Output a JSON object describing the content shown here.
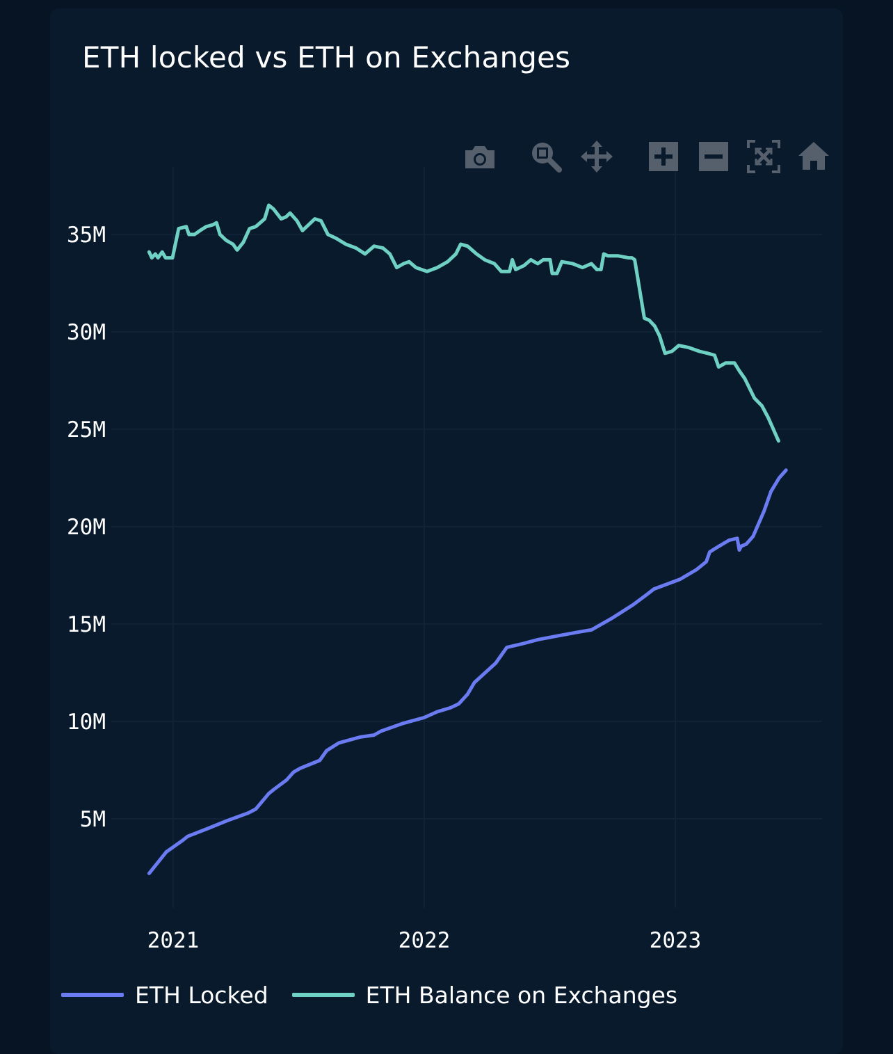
{
  "title": "ETH locked vs ETH on Exchanges",
  "toolbar": {
    "items": [
      {
        "name": "camera-icon",
        "title": "Download plot as a png"
      },
      {
        "name": "zoom-icon",
        "title": "Zoom"
      },
      {
        "name": "pan-icon",
        "title": "Pan"
      },
      {
        "name": "zoom-in-icon",
        "title": "Zoom in"
      },
      {
        "name": "zoom-out-icon",
        "title": "Zoom out"
      },
      {
        "name": "autoscale-icon",
        "title": "Autoscale"
      },
      {
        "name": "reset-axes-icon",
        "title": "Reset axes"
      }
    ],
    "icon_color": "#56606c"
  },
  "colors": {
    "background": "#061424",
    "panel": "#091a2d",
    "grid": "#13243a",
    "locked": "#6b7cf2",
    "exchanges": "#6fd0c4"
  },
  "chart_data": {
    "type": "line",
    "title": "ETH locked vs ETH on Exchanges",
    "xlabel": "",
    "ylabel": "",
    "x_ticks": [
      "2021",
      "2022",
      "2023"
    ],
    "y_ticks": [
      "5M",
      "10M",
      "15M",
      "20M",
      "25M",
      "30M",
      "35M"
    ],
    "y_tick_values": [
      5000000,
      10000000,
      15000000,
      20000000,
      25000000,
      30000000,
      35000000
    ],
    "xlim": [
      "2020-10-29",
      "2023-08-01"
    ],
    "ylim": [
      500000,
      37500000
    ],
    "grid": true,
    "legend_position": "bottom-left",
    "series": [
      {
        "name": "ETH Locked",
        "color": "#6b7cf2",
        "points": [
          [
            "2020-11-27",
            2200000
          ],
          [
            "2020-12-22",
            3300000
          ],
          [
            "2021-01-15",
            3900000
          ],
          [
            "2021-01-22",
            4100000
          ],
          [
            "2021-02-20",
            4500000
          ],
          [
            "2021-03-20",
            4900000
          ],
          [
            "2021-04-20",
            5300000
          ],
          [
            "2021-05-01",
            5500000
          ],
          [
            "2021-05-20",
            6300000
          ],
          [
            "2021-05-27",
            6500000
          ],
          [
            "2021-06-15",
            7000000
          ],
          [
            "2021-06-25",
            7400000
          ],
          [
            "2021-07-05",
            7600000
          ],
          [
            "2021-08-02",
            8000000
          ],
          [
            "2021-08-12",
            8500000
          ],
          [
            "2021-08-30",
            8900000
          ],
          [
            "2021-09-30",
            9200000
          ],
          [
            "2021-10-20",
            9300000
          ],
          [
            "2021-10-30",
            9500000
          ],
          [
            "2021-12-01",
            9900000
          ],
          [
            "2022-01-01",
            10200000
          ],
          [
            "2022-01-20",
            10500000
          ],
          [
            "2022-02-08",
            10700000
          ],
          [
            "2022-02-20",
            10900000
          ],
          [
            "2022-03-05",
            11400000
          ],
          [
            "2022-03-15",
            12000000
          ],
          [
            "2022-04-15",
            13000000
          ],
          [
            "2022-05-01",
            13800000
          ],
          [
            "2022-05-25",
            14000000
          ],
          [
            "2022-06-15",
            14200000
          ],
          [
            "2022-07-15",
            14400000
          ],
          [
            "2022-08-15",
            14600000
          ],
          [
            "2022-09-01",
            14700000
          ],
          [
            "2022-10-01",
            15300000
          ],
          [
            "2022-11-01",
            16000000
          ],
          [
            "2022-11-20",
            16500000
          ],
          [
            "2022-12-01",
            16800000
          ],
          [
            "2023-01-08",
            17300000
          ],
          [
            "2023-02-01",
            17800000
          ],
          [
            "2023-02-15",
            18200000
          ],
          [
            "2023-02-20",
            18700000
          ],
          [
            "2023-03-01",
            18900000
          ],
          [
            "2023-03-20",
            19300000
          ],
          [
            "2023-04-01",
            19400000
          ],
          [
            "2023-04-04",
            18800000
          ],
          [
            "2023-04-07",
            19000000
          ],
          [
            "2023-04-14",
            19100000
          ],
          [
            "2023-04-24",
            19500000
          ],
          [
            "2023-05-10",
            20800000
          ],
          [
            "2023-05-20",
            21800000
          ],
          [
            "2023-06-01",
            22500000
          ],
          [
            "2023-06-11",
            22900000
          ]
        ]
      },
      {
        "name": "ETH Balance on Exchanges",
        "color": "#6fd0c4",
        "points": [
          [
            "2020-11-27",
            34100000
          ],
          [
            "2020-12-01",
            33800000
          ],
          [
            "2020-12-06",
            34000000
          ],
          [
            "2020-12-10",
            33800000
          ],
          [
            "2020-12-16",
            34100000
          ],
          [
            "2020-12-21",
            33800000
          ],
          [
            "2020-12-31",
            33800000
          ],
          [
            "2021-01-09",
            35300000
          ],
          [
            "2021-01-20",
            35400000
          ],
          [
            "2021-01-24",
            35000000
          ],
          [
            "2021-02-01",
            35000000
          ],
          [
            "2021-02-09",
            35200000
          ],
          [
            "2021-02-18",
            35400000
          ],
          [
            "2021-02-28",
            35500000
          ],
          [
            "2021-03-05",
            35600000
          ],
          [
            "2021-03-10",
            35000000
          ],
          [
            "2021-03-19",
            34700000
          ],
          [
            "2021-03-29",
            34500000
          ],
          [
            "2021-04-04",
            34200000
          ],
          [
            "2021-04-13",
            34600000
          ],
          [
            "2021-04-22",
            35300000
          ],
          [
            "2021-05-01",
            35400000
          ],
          [
            "2021-05-14",
            35800000
          ],
          [
            "2021-05-20",
            36500000
          ],
          [
            "2021-05-27",
            36300000
          ],
          [
            "2021-06-07",
            35800000
          ],
          [
            "2021-06-14",
            35900000
          ],
          [
            "2021-06-20",
            36100000
          ],
          [
            "2021-06-30",
            35700000
          ],
          [
            "2021-07-08",
            35200000
          ],
          [
            "2021-07-20",
            35600000
          ],
          [
            "2021-07-26",
            35800000
          ],
          [
            "2021-08-04",
            35700000
          ],
          [
            "2021-08-14",
            35000000
          ],
          [
            "2021-08-26",
            34800000
          ],
          [
            "2021-09-09",
            34500000
          ],
          [
            "2021-09-24",
            34300000
          ],
          [
            "2021-10-07",
            34000000
          ],
          [
            "2021-10-20",
            34400000
          ],
          [
            "2021-11-02",
            34300000
          ],
          [
            "2021-11-12",
            34000000
          ],
          [
            "2021-11-22",
            33300000
          ],
          [
            "2021-12-02",
            33500000
          ],
          [
            "2021-12-10",
            33600000
          ],
          [
            "2021-12-20",
            33300000
          ],
          [
            "2022-01-05",
            33100000
          ],
          [
            "2022-01-20",
            33300000
          ],
          [
            "2022-02-04",
            33600000
          ],
          [
            "2022-02-16",
            34000000
          ],
          [
            "2022-02-23",
            34500000
          ],
          [
            "2022-03-05",
            34400000
          ],
          [
            "2022-03-18",
            34000000
          ],
          [
            "2022-03-30",
            33700000
          ],
          [
            "2022-04-13",
            33500000
          ],
          [
            "2022-04-23",
            33100000
          ],
          [
            "2022-05-05",
            33100000
          ],
          [
            "2022-05-09",
            33700000
          ],
          [
            "2022-05-14",
            33200000
          ],
          [
            "2022-05-26",
            33400000
          ],
          [
            "2022-06-05",
            33700000
          ],
          [
            "2022-06-15",
            33500000
          ],
          [
            "2022-06-23",
            33700000
          ],
          [
            "2022-07-03",
            33700000
          ],
          [
            "2022-07-06",
            33000000
          ],
          [
            "2022-07-13",
            33000000
          ],
          [
            "2022-07-20",
            33600000
          ],
          [
            "2022-08-05",
            33500000
          ],
          [
            "2022-08-19",
            33300000
          ],
          [
            "2022-09-01",
            33500000
          ],
          [
            "2022-09-09",
            33200000
          ],
          [
            "2022-09-15",
            33200000
          ],
          [
            "2022-09-19",
            34000000
          ],
          [
            "2022-09-25",
            33900000
          ],
          [
            "2022-10-10",
            33900000
          ],
          [
            "2022-10-25",
            33800000
          ],
          [
            "2022-10-30",
            33800000
          ],
          [
            "2022-11-03",
            33700000
          ],
          [
            "2022-11-17",
            30700000
          ],
          [
            "2022-11-24",
            30600000
          ],
          [
            "2022-12-02",
            30300000
          ],
          [
            "2022-12-09",
            29800000
          ],
          [
            "2022-12-17",
            28900000
          ],
          [
            "2022-12-27",
            29000000
          ],
          [
            "2023-01-06",
            29300000
          ],
          [
            "2023-01-20",
            29200000
          ],
          [
            "2023-02-05",
            29000000
          ],
          [
            "2023-02-17",
            28900000
          ],
          [
            "2023-02-27",
            28800000
          ],
          [
            "2023-03-05",
            28200000
          ],
          [
            "2023-03-15",
            28400000
          ],
          [
            "2023-03-28",
            28400000
          ],
          [
            "2023-04-04",
            28000000
          ],
          [
            "2023-04-12",
            27600000
          ],
          [
            "2023-04-26",
            26600000
          ],
          [
            "2023-05-07",
            26200000
          ],
          [
            "2023-05-16",
            25600000
          ],
          [
            "2023-05-21",
            25200000
          ],
          [
            "2023-05-31",
            24400000
          ]
        ]
      }
    ]
  }
}
